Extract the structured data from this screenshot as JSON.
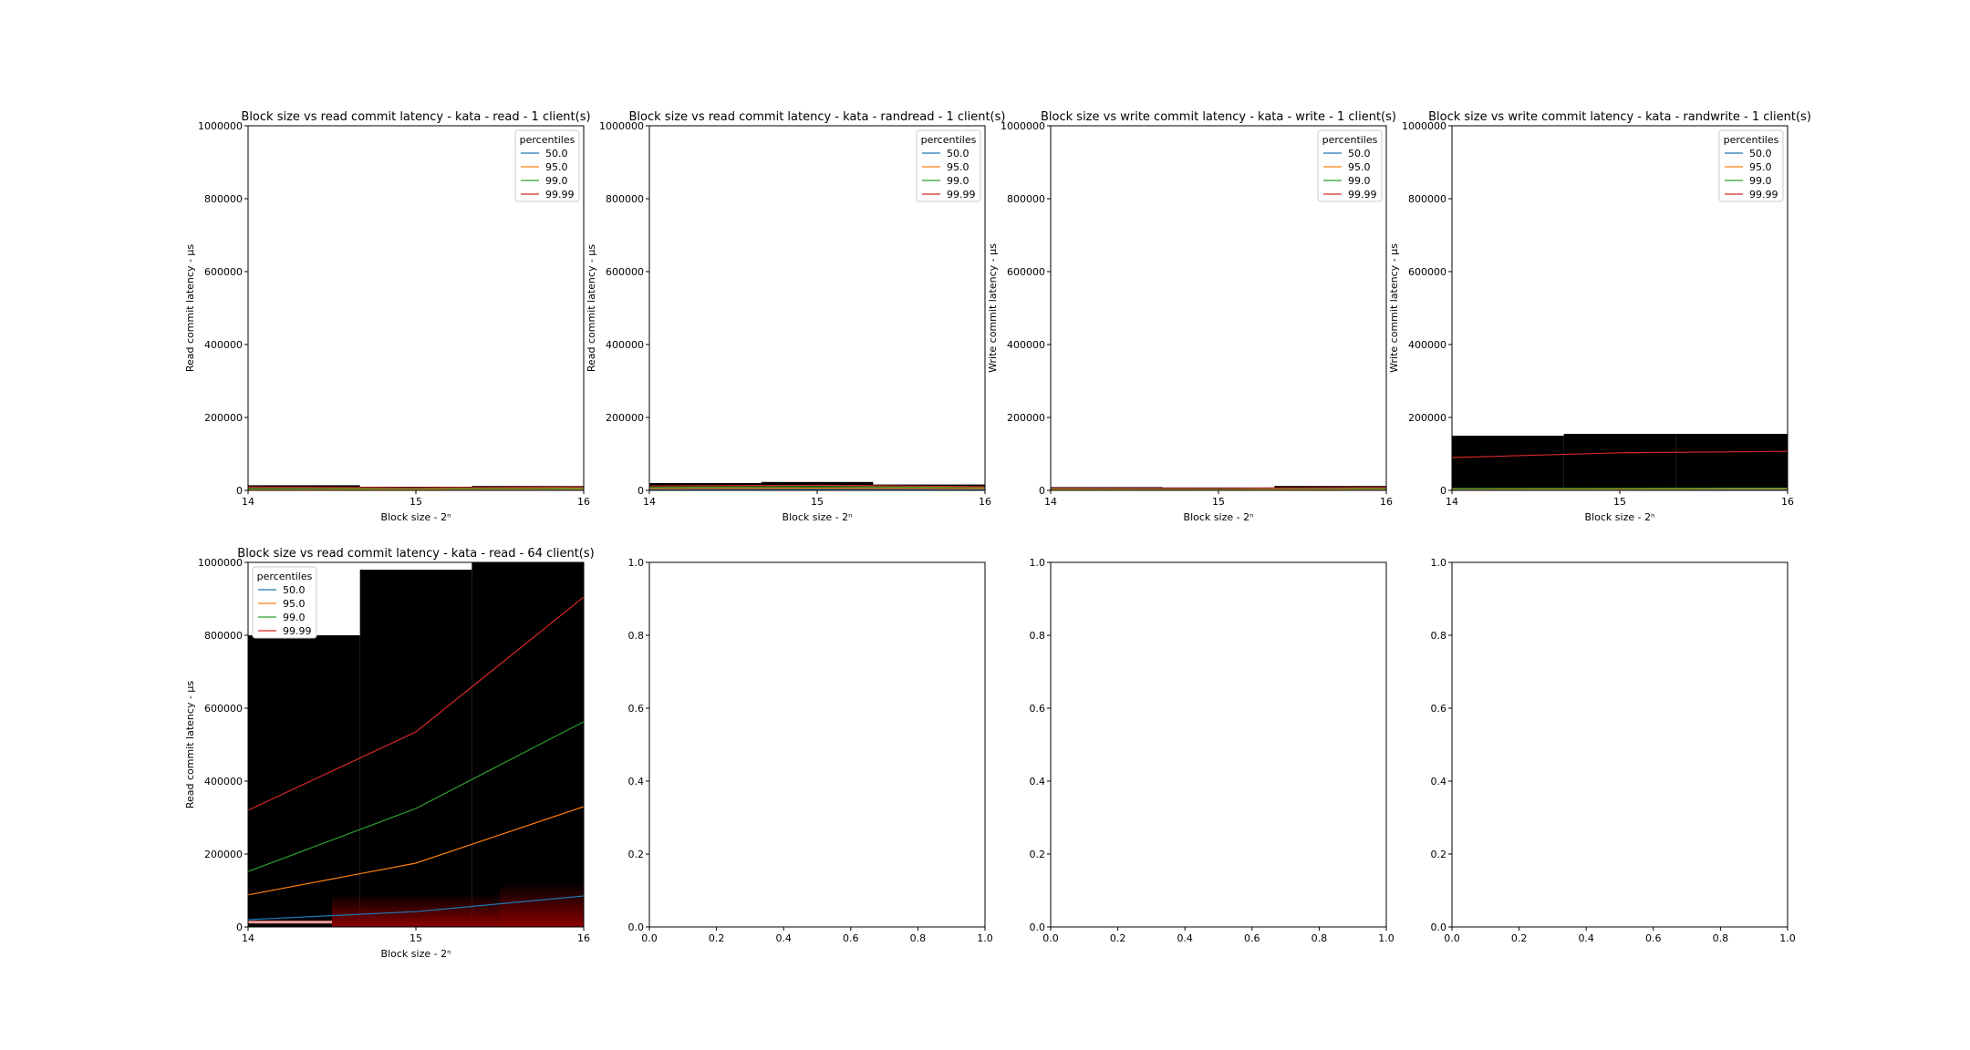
{
  "colors": {
    "p50": "#1f77b4",
    "p95": "#ff7f0e",
    "p99": "#2ca02c",
    "p9999": "#d62728",
    "band": "#000000",
    "glow": "#8b0000"
  },
  "chart_data": [
    {
      "type": "line",
      "title": "Block size vs read commit latency - kata - read - 1 client(s)",
      "xlabel": "Block size - 2ⁿ",
      "ylabel": "Read commit latency - μs",
      "x": [
        14,
        15,
        16
      ],
      "xlim": [
        14,
        16
      ],
      "ylim": [
        0,
        1000000
      ],
      "xticks": [
        "14",
        "15",
        "16"
      ],
      "yticks": [
        "0",
        "200000",
        "400000",
        "600000",
        "800000",
        "1000000"
      ],
      "legend": {
        "title": "percentiles",
        "placement": "upper right"
      },
      "series": [
        {
          "name": "50.0",
          "values": [
            1500,
            1400,
            1600
          ]
        },
        {
          "name": "95.0",
          "values": [
            3000,
            2800,
            3500
          ]
        },
        {
          "name": "99.0",
          "values": [
            5000,
            4500,
            6000
          ]
        },
        {
          "name": "99.99",
          "values": [
            9000,
            7000,
            9500
          ]
        }
      ],
      "band_tops": [
        14000,
        10000,
        12000
      ]
    },
    {
      "type": "line",
      "title": "Block size vs read commit latency - kata - randread - 1 client(s)",
      "xlabel": "Block size - 2ⁿ",
      "ylabel": "Read commit latency - μs",
      "x": [
        14,
        15,
        16
      ],
      "xlim": [
        14,
        16
      ],
      "ylim": [
        0,
        1000000
      ],
      "xticks": [
        "14",
        "15",
        "16"
      ],
      "yticks": [
        "0",
        "200000",
        "400000",
        "600000",
        "800000",
        "1000000"
      ],
      "legend": {
        "title": "percentiles",
        "placement": "upper right"
      },
      "series": [
        {
          "name": "50.0",
          "values": [
            2000,
            2200,
            2000
          ]
        },
        {
          "name": "95.0",
          "values": [
            5000,
            6000,
            5000
          ]
        },
        {
          "name": "99.0",
          "values": [
            8000,
            10000,
            8000
          ]
        },
        {
          "name": "99.99",
          "values": [
            12000,
            14000,
            10000
          ]
        }
      ],
      "band_tops": [
        20000,
        23000,
        16000
      ]
    },
    {
      "type": "line",
      "title": "Block size vs write commit latency - kata - write - 1 client(s)",
      "xlabel": "Block size - 2ⁿ",
      "ylabel": "Write commit latency - μs",
      "x": [
        14,
        15,
        16
      ],
      "xlim": [
        14,
        16
      ],
      "ylim": [
        0,
        1000000
      ],
      "xticks": [
        "14",
        "15",
        "16"
      ],
      "yticks": [
        "0",
        "200000",
        "400000",
        "600000",
        "800000",
        "1000000"
      ],
      "legend": {
        "title": "percentiles",
        "placement": "upper right"
      },
      "series": [
        {
          "name": "50.0",
          "values": [
            1200,
            1200,
            1300
          ]
        },
        {
          "name": "95.0",
          "values": [
            2500,
            2400,
            3000
          ]
        },
        {
          "name": "99.0",
          "values": [
            4000,
            3800,
            5000
          ]
        },
        {
          "name": "99.99",
          "values": [
            6000,
            5500,
            8000
          ]
        }
      ],
      "band_tops": [
        9000,
        8000,
        12000
      ]
    },
    {
      "type": "line",
      "title": "Block size vs write commit latency - kata - randwrite - 1 client(s)",
      "xlabel": "Block size - 2ⁿ",
      "ylabel": "Write commit latency - μs",
      "x": [
        14,
        15,
        16
      ],
      "xlim": [
        14,
        16
      ],
      "ylim": [
        0,
        1000000
      ],
      "xticks": [
        "14",
        "15",
        "16"
      ],
      "yticks": [
        "0",
        "200000",
        "400000",
        "600000",
        "800000",
        "1000000"
      ],
      "legend": {
        "title": "percentiles",
        "placement": "upper right"
      },
      "series": [
        {
          "name": "50.0",
          "values": [
            2000,
            2000,
            2500
          ]
        },
        {
          "name": "95.0",
          "values": [
            3500,
            3600,
            4000
          ]
        },
        {
          "name": "99.0",
          "values": [
            5000,
            5500,
            6000
          ]
        },
        {
          "name": "99.99",
          "values": [
            90000,
            103000,
            107000
          ]
        }
      ],
      "band_tops": [
        150000,
        155000,
        155000
      ]
    },
    {
      "type": "line",
      "title": "Block size vs read commit latency - kata - read - 64 client(s)",
      "xlabel": "Block size - 2ⁿ",
      "ylabel": "Read commit latency - μs",
      "x": [
        14,
        15,
        16
      ],
      "xlim": [
        14,
        16
      ],
      "ylim": [
        0,
        1000000
      ],
      "xticks": [
        "14",
        "15",
        "16"
      ],
      "yticks": [
        "0",
        "200000",
        "400000",
        "600000",
        "800000",
        "1000000"
      ],
      "legend": {
        "title": "percentiles",
        "placement": "upper left"
      },
      "series": [
        {
          "name": "50.0",
          "values": [
            20000,
            42000,
            85000
          ]
        },
        {
          "name": "95.0",
          "values": [
            88000,
            175000,
            330000
          ]
        },
        {
          "name": "99.0",
          "values": [
            152000,
            325000,
            563000
          ]
        },
        {
          "name": "99.99",
          "values": [
            320000,
            535000,
            905000
          ]
        }
      ],
      "band_tops": [
        800000,
        980000,
        1000000
      ]
    },
    {
      "type": "line",
      "title": "",
      "xlabel": "",
      "ylabel": "",
      "xlim": [
        0.0,
        1.0
      ],
      "ylim": [
        0.0,
        1.0
      ],
      "xticks": [
        "0.0",
        "0.2",
        "0.4",
        "0.6",
        "0.8",
        "1.0"
      ],
      "yticks": [
        "0.0",
        "0.2",
        "0.4",
        "0.6",
        "0.8",
        "1.0"
      ],
      "series": []
    },
    {
      "type": "line",
      "title": "",
      "xlabel": "",
      "ylabel": "",
      "xlim": [
        0.0,
        1.0
      ],
      "ylim": [
        0.0,
        1.0
      ],
      "xticks": [
        "0.0",
        "0.2",
        "0.4",
        "0.6",
        "0.8",
        "1.0"
      ],
      "yticks": [
        "0.0",
        "0.2",
        "0.4",
        "0.6",
        "0.8",
        "1.0"
      ],
      "series": []
    },
    {
      "type": "line",
      "title": "",
      "xlabel": "",
      "ylabel": "",
      "xlim": [
        0.0,
        1.0
      ],
      "ylim": [
        0.0,
        1.0
      ],
      "xticks": [
        "0.0",
        "0.2",
        "0.4",
        "0.6",
        "0.8",
        "1.0"
      ],
      "yticks": [
        "0.0",
        "0.2",
        "0.4",
        "0.6",
        "0.8",
        "1.0"
      ],
      "series": []
    }
  ]
}
